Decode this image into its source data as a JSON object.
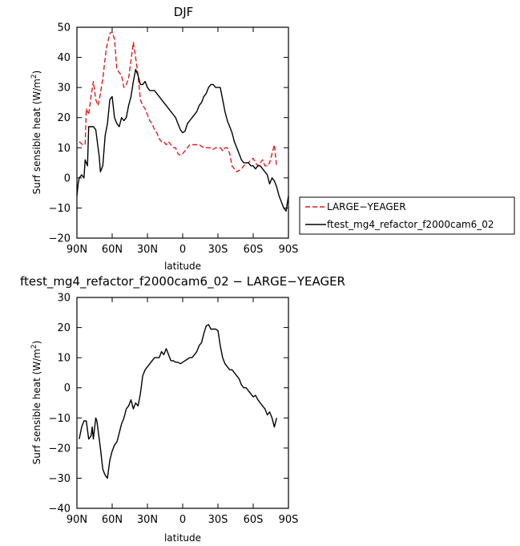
{
  "chart_data": [
    {
      "type": "line",
      "title": "DJF",
      "xlabel": "latitude",
      "ylabel": "Surf sensible heat (W/m²)",
      "ylabel_main": "Surf sensible heat (W/m",
      "ylabel_sup": "2",
      "ylabel_tail": ")",
      "xlim": [
        90,
        -90
      ],
      "ylim": [
        -20,
        50
      ],
      "xticks": [
        90,
        60,
        30,
        0,
        -30,
        -60,
        -90
      ],
      "xtick_labels": [
        "90N",
        "60N",
        "30N",
        "0",
        "30S",
        "60S",
        "90S"
      ],
      "yticks": [
        -20,
        -10,
        0,
        10,
        20,
        30,
        40,
        50
      ],
      "ytick_labels": [
        "−20",
        "−10",
        "0",
        "10",
        "20",
        "30",
        "40",
        "50"
      ],
      "legend_position": "right",
      "series": [
        {
          "name": "LARGE−YEAGER",
          "color": "#e41a1c",
          "dash": true,
          "x": [
            88,
            85,
            83,
            82,
            80,
            78,
            76,
            74,
            72,
            70,
            68,
            65,
            62,
            60,
            58,
            56,
            54,
            52,
            50,
            48,
            46,
            44,
            42,
            40,
            38,
            36,
            34,
            32,
            30,
            28,
            26,
            24,
            22,
            20,
            18,
            16,
            14,
            12,
            10,
            8,
            6,
            4,
            2,
            0,
            -2,
            -4,
            -6,
            -8,
            -10,
            -12,
            -14,
            -16,
            -18,
            -20,
            -22,
            -24,
            -26,
            -28,
            -30,
            -32,
            -34,
            -36,
            -38,
            -40,
            -42,
            -44,
            -46,
            -48,
            -50,
            -52,
            -54,
            -56,
            -58,
            -60,
            -62,
            -64,
            -66,
            -68,
            -70,
            -72,
            -74,
            -76,
            -78,
            -80
          ],
          "y": [
            12,
            11,
            11,
            23,
            21,
            27,
            32,
            26,
            24,
            28,
            33,
            43,
            48,
            48.5,
            46,
            36,
            35,
            34,
            30,
            31,
            33,
            39,
            45,
            40,
            34,
            26,
            24,
            23,
            21,
            19,
            18,
            16,
            15,
            13,
            12,
            12,
            11,
            12,
            11,
            10,
            10,
            8,
            7.5,
            8,
            9,
            10,
            11,
            11,
            11,
            11,
            11,
            10.5,
            10,
            10,
            10,
            10,
            9.5,
            10,
            10,
            10,
            9,
            10,
            10,
            8,
            4,
            3,
            2,
            2.5,
            3,
            4,
            5,
            5,
            6,
            6.5,
            5,
            4,
            5,
            6,
            4,
            4,
            5,
            8,
            11,
            3.5
          ]
        },
        {
          "name": "ftest_mg4_refactor_f2000cam6_02",
          "color": "#000000",
          "dash": false,
          "x": [
            90,
            89,
            88,
            86,
            84,
            83,
            82,
            81,
            80,
            78,
            76,
            74,
            72,
            71,
            70,
            68,
            66,
            64,
            62,
            60,
            58,
            56,
            54,
            52,
            50,
            48,
            46,
            44,
            42,
            40,
            38,
            36,
            34,
            32,
            30,
            28,
            26,
            24,
            22,
            20,
            18,
            16,
            14,
            12,
            10,
            8,
            6,
            4,
            2,
            0,
            -2,
            -4,
            -6,
            -8,
            -10,
            -12,
            -14,
            -16,
            -18,
            -20,
            -22,
            -24,
            -26,
            -28,
            -30,
            -32,
            -34,
            -36,
            -38,
            -40,
            -42,
            -44,
            -46,
            -48,
            -50,
            -52,
            -54,
            -56,
            -58,
            -60,
            -62,
            -64,
            -66,
            -68,
            -70,
            -72,
            -74,
            -76,
            -78,
            -80,
            -82,
            -84,
            -86,
            -88,
            -90
          ],
          "y": [
            -6,
            -2,
            0,
            1,
            0,
            6,
            5,
            4,
            17,
            17,
            17,
            16,
            10,
            7,
            2,
            4,
            14,
            18,
            26,
            27,
            20,
            18,
            17,
            20,
            19,
            20,
            24,
            27,
            32,
            36,
            34,
            31,
            31,
            32,
            30,
            29,
            29,
            29,
            28,
            27,
            26,
            25,
            24,
            23,
            22,
            21,
            20,
            18,
            16,
            15,
            15.5,
            18,
            19,
            20,
            21,
            22,
            24,
            25,
            27,
            28,
            30,
            31,
            31,
            30,
            30,
            30,
            26,
            22,
            19,
            17,
            15,
            12,
            10,
            8,
            6,
            5,
            5,
            5,
            4,
            4,
            3,
            4,
            4,
            3,
            2,
            1,
            -2,
            0,
            -1,
            -3,
            -6,
            -8,
            -10,
            -11,
            -6
          ]
        }
      ]
    },
    {
      "type": "line",
      "title": "ftest_mg4_refactor_f2000cam6_02 − LARGE−YEAGER",
      "xlabel": "latitude",
      "ylabel": "Surf sensible heat (W/m²)",
      "ylabel_main": "Surf sensible heat (W/m",
      "ylabel_sup": "2",
      "ylabel_tail": ")",
      "xlim": [
        90,
        -90
      ],
      "ylim": [
        -40,
        30
      ],
      "xticks": [
        90,
        60,
        30,
        0,
        -30,
        -60,
        -90
      ],
      "xtick_labels": [
        "90N",
        "60N",
        "30N",
        "0",
        "30S",
        "60S",
        "90S"
      ],
      "yticks": [
        -40,
        -30,
        -20,
        -10,
        0,
        10,
        20,
        30
      ],
      "ytick_labels": [
        "−40",
        "−30",
        "−20",
        "−10",
        "0",
        "10",
        "20",
        "30"
      ],
      "series": [
        {
          "color": "#000000",
          "dash": false,
          "x": [
            88,
            86,
            84,
            82,
            80,
            78,
            77,
            76,
            74,
            73,
            72,
            70,
            68,
            66,
            64,
            62,
            60,
            58,
            56,
            54,
            52,
            50,
            48,
            46,
            44,
            42,
            40,
            38,
            36,
            34,
            32,
            30,
            28,
            26,
            24,
            22,
            20,
            18,
            16,
            14,
            12,
            10,
            8,
            6,
            4,
            2,
            0,
            -2,
            -4,
            -6,
            -8,
            -10,
            -12,
            -14,
            -16,
            -18,
            -20,
            -22,
            -24,
            -26,
            -28,
            -30,
            -32,
            -34,
            -36,
            -38,
            -40,
            -42,
            -44,
            -46,
            -48,
            -50,
            -52,
            -54,
            -56,
            -58,
            -60,
            -62,
            -64,
            -66,
            -68,
            -70,
            -72,
            -74,
            -76,
            -78,
            -80
          ],
          "y": [
            -17,
            -13,
            -11,
            -11,
            -17,
            -16,
            -13,
            -17,
            -10,
            -11,
            -14,
            -20,
            -27,
            -29,
            -30,
            -24,
            -21,
            -19,
            -18,
            -15,
            -12,
            -10,
            -7,
            -6,
            -4,
            -7,
            -5,
            -6,
            -2,
            4,
            6,
            7,
            8,
            9,
            10,
            10,
            10,
            12,
            11,
            13,
            11,
            9,
            9,
            8.5,
            8.5,
            8,
            8.5,
            9,
            9.5,
            10,
            10,
            11,
            12,
            14,
            15,
            18,
            20.5,
            21,
            19.5,
            19.5,
            19.5,
            19,
            14,
            10,
            8,
            7,
            6,
            6,
            5,
            4,
            3,
            1,
            0,
            0,
            -1,
            -2,
            -3,
            -2.5,
            -4,
            -5,
            -6,
            -7,
            -9,
            -8,
            -10,
            -13,
            -10
          ]
        }
      ]
    }
  ]
}
